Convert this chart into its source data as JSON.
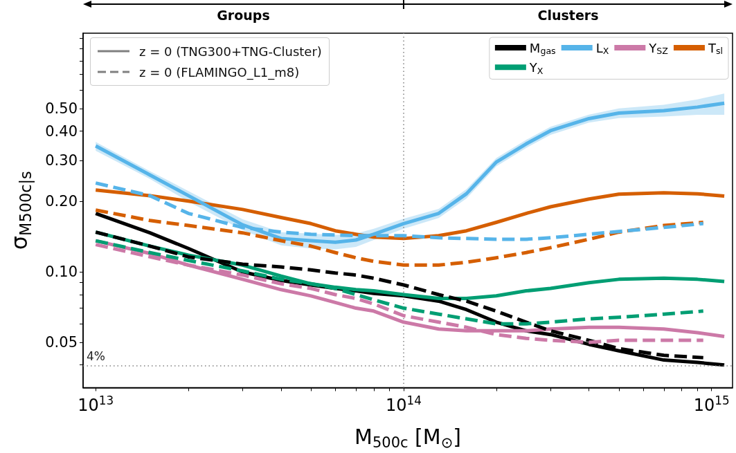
{
  "chart_data": {
    "type": "line",
    "xlabel": "M$_{500c}$ [M$_{⊙}$]",
    "ylabel": "σ$_{M500c|s}$",
    "log": "xy",
    "xlim": [
      9100000000000.0,
      1170000000000000.0
    ],
    "ylim": [
      0.032,
      1.05
    ],
    "xticks": [
      {
        "value": 10000000000000.0,
        "label": "10$^{13}$"
      },
      {
        "value": 20000000000000.0,
        "label": null
      },
      {
        "value": 30000000000000.0,
        "label": null
      },
      {
        "value": 40000000000000.0,
        "label": null
      },
      {
        "value": 50000000000000.0,
        "label": null
      },
      {
        "value": 60000000000000.0,
        "label": null
      },
      {
        "value": 70000000000000.0,
        "label": null
      },
      {
        "value": 80000000000000.0,
        "label": null
      },
      {
        "value": 90000000000000.0,
        "label": null
      },
      {
        "value": 100000000000000.0,
        "label": "10$^{14}$"
      },
      {
        "value": 200000000000000.0,
        "label": null
      },
      {
        "value": 300000000000000.0,
        "label": null
      },
      {
        "value": 400000000000000.0,
        "label": null
      },
      {
        "value": 500000000000000.0,
        "label": null
      },
      {
        "value": 600000000000000.0,
        "label": null
      },
      {
        "value": 700000000000000.0,
        "label": null
      },
      {
        "value": 800000000000000.0,
        "label": null
      },
      {
        "value": 900000000000000.0,
        "label": null
      },
      {
        "value": 1000000000000000.0,
        "label": "10$^{15}$"
      }
    ],
    "yticks": [
      {
        "value": 0.04,
        "label": null
      },
      0.05,
      {
        "value": 0.06,
        "label": null
      },
      {
        "value": 0.07,
        "label": null
      },
      {
        "value": 0.08,
        "label": null
      },
      {
        "value": 0.09,
        "label": null
      },
      {
        "value": 0.1,
        "label": "0.10"
      },
      {
        "value": 0.2,
        "label": "0.20"
      },
      {
        "value": 0.3,
        "label": "0.30"
      },
      {
        "value": 0.4,
        "label": "0.40"
      },
      {
        "value": 0.5,
        "label": "0.50"
      },
      {
        "value": 0.6,
        "label": null
      },
      {
        "value": 0.7,
        "label": null
      },
      {
        "value": 0.8,
        "label": null
      },
      {
        "value": 0.9,
        "label": null
      },
      {
        "value": 1.0,
        "label": null
      }
    ],
    "x": [
      10000000000000.0,
      15000000000000.0,
      20000000000000.0,
      30000000000000.0,
      40000000000000.0,
      50000000000000.0,
      60000000000000.0,
      70000000000000.0,
      80000000000000.0,
      100000000000000.0,
      130000000000000.0,
      160000000000000.0,
      200000000000000.0,
      250000000000000.0,
      300000000000000.0,
      400000000000000.0,
      500000000000000.0,
      700000000000000.0,
      900000000000000.0,
      1100000000000000.0
    ],
    "legend": "top right",
    "series": [
      {
        "name": "M$_{gas}$",
        "color": "#000000",
        "line_style": "solid",
        "values": [
          0.178,
          0.147,
          0.126,
          0.1,
          0.092,
          0.088,
          0.085,
          0.083,
          0.081,
          0.079,
          0.075,
          0.069,
          0.061,
          0.056,
          0.054,
          0.049,
          0.046,
          0.042,
          0.041,
          0.04
        ]
      },
      {
        "name": "T$_{sl}$",
        "color": "#d55e00",
        "line_style": "solid",
        "values": [
          0.224,
          0.212,
          0.201,
          0.185,
          0.171,
          0.161,
          0.15,
          0.145,
          0.141,
          0.139,
          0.143,
          0.15,
          0.163,
          0.178,
          0.19,
          0.205,
          0.215,
          0.218,
          0.216,
          0.211
        ]
      },
      {
        "name": "L$_{X}$",
        "color": "#56b4e9",
        "line_style": "solid",
        "values": [
          0.346,
          0.26,
          0.212,
          0.159,
          0.139,
          0.136,
          0.134,
          0.137,
          0.145,
          0.161,
          0.178,
          0.216,
          0.295,
          0.353,
          0.402,
          0.453,
          0.478,
          0.49,
          0.507,
          0.527
        ],
        "lower": [
          0.33,
          0.25,
          0.2,
          0.151,
          0.13,
          0.126,
          0.125,
          0.128,
          0.137,
          0.153,
          0.17,
          0.206,
          0.283,
          0.339,
          0.386,
          0.435,
          0.455,
          0.462,
          0.47,
          0.47
        ],
        "upper": [
          0.36,
          0.27,
          0.222,
          0.168,
          0.148,
          0.146,
          0.144,
          0.146,
          0.153,
          0.169,
          0.186,
          0.226,
          0.307,
          0.367,
          0.418,
          0.471,
          0.501,
          0.519,
          0.547,
          0.58
        ]
      },
      {
        "name": "Y$_{X}$",
        "color": "#009e73",
        "line_style": "solid",
        "values": [
          0.148,
          0.129,
          0.118,
          0.107,
          0.096,
          0.089,
          0.086,
          0.084,
          0.083,
          0.08,
          0.077,
          0.077,
          0.079,
          0.083,
          0.085,
          0.09,
          0.093,
          0.094,
          0.093,
          0.091
        ]
      },
      {
        "name": "Y$_{SZ}$",
        "color": "#cc79a7",
        "line_style": "solid",
        "values": [
          0.136,
          0.12,
          0.107,
          0.093,
          0.084,
          0.079,
          0.074,
          0.07,
          0.068,
          0.061,
          0.057,
          0.056,
          0.056,
          0.056,
          0.057,
          0.058,
          0.058,
          0.057,
          0.055,
          0.053
        ]
      },
      {
        "color": "#000000",
        "line_style": "dashed",
        "x": [
          10000000000000.0,
          15000000000000.0,
          20000000000000.0,
          30000000000000.0,
          40000000000000.0,
          50000000000000.0,
          60000000000000.0,
          70000000000000.0,
          80000000000000.0,
          100000000000000.0,
          130000000000000.0,
          160000000000000.0,
          200000000000000.0,
          250000000000000.0,
          300000000000000.0,
          400000000000000.0,
          500000000000000.0,
          700000000000000.0,
          940000000000000.0
        ],
        "values": [
          0.148,
          0.129,
          0.116,
          0.108,
          0.105,
          0.102,
          0.099,
          0.097,
          0.094,
          0.088,
          0.08,
          0.075,
          0.068,
          0.061,
          0.056,
          0.051,
          0.047,
          0.044,
          0.043
        ]
      },
      {
        "color": "#d55e00",
        "line_style": "dashed",
        "x": [
          10000000000000.0,
          15000000000000.0,
          20000000000000.0,
          30000000000000.0,
          40000000000000.0,
          50000000000000.0,
          60000000000000.0,
          70000000000000.0,
          80000000000000.0,
          100000000000000.0,
          130000000000000.0,
          160000000000000.0,
          200000000000000.0,
          250000000000000.0,
          300000000000000.0,
          400000000000000.0,
          500000000000000.0,
          700000000000000.0,
          940000000000000.0
        ],
        "values": [
          0.184,
          0.166,
          0.158,
          0.147,
          0.136,
          0.129,
          0.121,
          0.115,
          0.111,
          0.107,
          0.107,
          0.11,
          0.115,
          0.121,
          0.127,
          0.138,
          0.148,
          0.158,
          0.163
        ]
      },
      {
        "color": "#56b4e9",
        "line_style": "dashed",
        "x": [
          10000000000000.0,
          15000000000000.0,
          20000000000000.0,
          30000000000000.0,
          40000000000000.0,
          50000000000000.0,
          60000000000000.0,
          70000000000000.0,
          80000000000000.0,
          100000000000000.0,
          130000000000000.0,
          160000000000000.0,
          200000000000000.0,
          250000000000000.0,
          300000000000000.0,
          400000000000000.0,
          500000000000000.0,
          700000000000000.0,
          940000000000000.0
        ],
        "values": [
          0.24,
          0.212,
          0.178,
          0.155,
          0.148,
          0.145,
          0.144,
          0.143,
          0.143,
          0.143,
          0.14,
          0.139,
          0.138,
          0.138,
          0.14,
          0.145,
          0.149,
          0.155,
          0.161
        ]
      },
      {
        "color": "#009e73",
        "line_style": "dashed",
        "x": [
          10000000000000.0,
          15000000000000.0,
          20000000000000.0,
          30000000000000.0,
          40000000000000.0,
          50000000000000.0,
          60000000000000.0,
          70000000000000.0,
          80000000000000.0,
          100000000000000.0,
          130000000000000.0,
          160000000000000.0,
          200000000000000.0,
          250000000000000.0,
          300000000000000.0,
          400000000000000.0,
          500000000000000.0,
          700000000000000.0,
          940000000000000.0
        ],
        "values": [
          0.136,
          0.121,
          0.112,
          0.101,
          0.093,
          0.089,
          0.085,
          0.08,
          0.076,
          0.07,
          0.066,
          0.063,
          0.06,
          0.06,
          0.061,
          0.063,
          0.064,
          0.066,
          0.068
        ]
      },
      {
        "color": "#cc79a7",
        "line_style": "dashed",
        "x": [
          10000000000000.0,
          15000000000000.0,
          20000000000000.0,
          30000000000000.0,
          40000000000000.0,
          50000000000000.0,
          60000000000000.0,
          70000000000000.0,
          80000000000000.0,
          100000000000000.0,
          130000000000000.0,
          160000000000000.0,
          200000000000000.0,
          250000000000000.0,
          300000000000000.0,
          400000000000000.0,
          500000000000000.0,
          700000000000000.0,
          940000000000000.0
        ],
        "values": [
          0.131,
          0.116,
          0.107,
          0.097,
          0.089,
          0.085,
          0.08,
          0.077,
          0.073,
          0.065,
          0.061,
          0.058,
          0.054,
          0.052,
          0.051,
          0.05,
          0.051,
          0.051,
          0.051
        ]
      }
    ],
    "ref_lines": [
      {
        "axis": "y",
        "value": 0.04,
        "label": "4%",
        "color": "#808080",
        "line_style": "dotted"
      },
      {
        "axis": "x",
        "value": 100000000000000.0,
        "label": null,
        "color": "#808080",
        "line_style": "dotted"
      }
    ],
    "annotations": [
      "z = 0 (TNG300+TNG-Cluster)",
      "z = 0 (FLAMINGO_L1_m8)",
      "Groups",
      "Clusters"
    ]
  }
}
